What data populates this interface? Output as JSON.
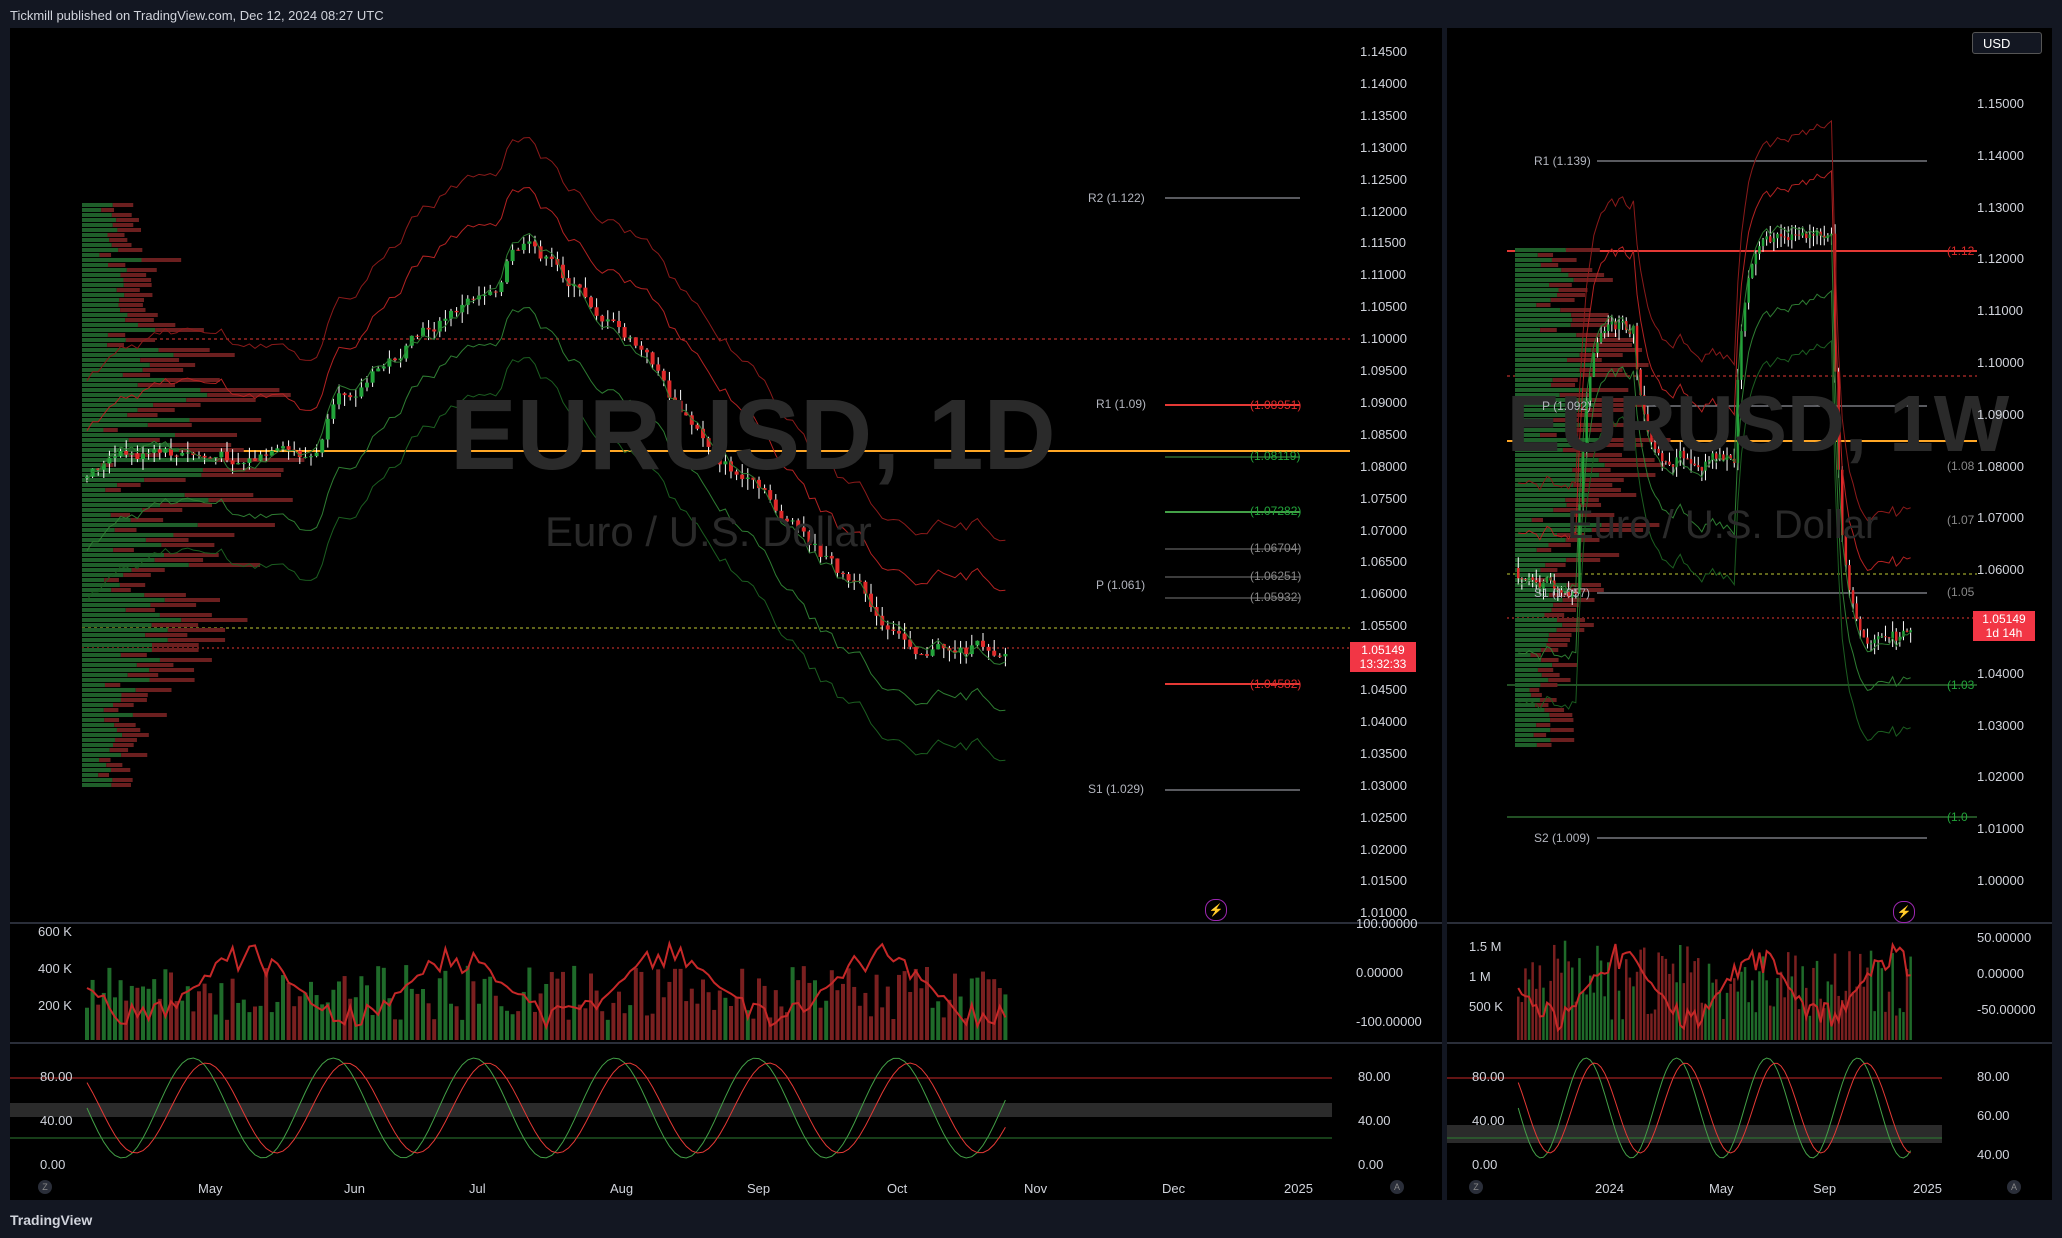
{
  "header": {
    "published": "Tickmill published on TradingView.com, Dec 12, 2024 08:27 UTC"
  },
  "footer": {
    "logo": "TradingView"
  },
  "colors": {
    "up": "#22a33a",
    "down": "#e02a2a",
    "background": "#000000",
    "pivot_line": "#ffa726",
    "price_tag": "#f23645"
  },
  "left_chart": {
    "symbol": "EURUSD, 1D",
    "description": "Euro / U.S. Dollar",
    "price_axis": [
      "1.14500",
      "1.14000",
      "1.13500",
      "1.13000",
      "1.12500",
      "1.12000",
      "1.11500",
      "1.11000",
      "1.10500",
      "1.10000",
      "1.09500",
      "1.09000",
      "1.08500",
      "1.08000",
      "1.07500",
      "1.07000",
      "1.06500",
      "1.06000",
      "1.05500",
      "1.05000",
      "1.04500",
      "1.04000",
      "1.03500",
      "1.03000",
      "1.02500",
      "1.02000",
      "1.01500",
      "1.01000"
    ],
    "time_axis": [
      "May",
      "Jun",
      "Jul",
      "Aug",
      "Sep",
      "Oct",
      "Nov",
      "Dec",
      "2025"
    ],
    "current_price": "1.05149",
    "countdown": "13:32:33",
    "pivots": {
      "r2": "R2 (1.122)",
      "r1": "R1 (1.09)",
      "p": "P (1.061)",
      "s1": "S1 (1.029)"
    },
    "fib_levels": [
      "(1.08951)",
      "(1.08119)",
      "(1.07282)",
      "(1.06704)",
      "(1.06251)",
      "(1.05932)",
      "(1.04582)"
    ],
    "volume_axis": [
      "600 K",
      "400 K",
      "200 K"
    ],
    "cci_axis": [
      "100.00000",
      "0.00000",
      "-100.00000"
    ],
    "stoch_axis_left": [
      "80.00",
      "40.00",
      "0.00"
    ],
    "stoch_axis_right": [
      "80.00",
      "40.00",
      "0.00"
    ]
  },
  "right_chart": {
    "symbol": "EURUSD, 1W",
    "description": "Euro / U.S. Dollar",
    "currency_button": "USD",
    "price_axis": [
      "1.15000",
      "1.14000",
      "1.13000",
      "1.12000",
      "1.11000",
      "1.10000",
      "1.09000",
      "1.08000",
      "1.07000",
      "1.06000",
      "1.05000",
      "1.04000",
      "1.03000",
      "1.02000",
      "1.01000",
      "1.00000"
    ],
    "time_axis": [
      "2024",
      "May",
      "Sep",
      "2025"
    ],
    "current_price": "1.05149",
    "countdown": "1d 14h",
    "pivots": {
      "r1": "R1 (1.139)",
      "p": "P (1.092)",
      "s1": "S1 (1.057)",
      "s2": "S2 (1.009)"
    },
    "fib_levels": [
      "(1.12",
      "(1.08",
      "(1.07",
      "(1.05",
      "(1.03",
      "(1.0"
    ],
    "volume_axis": [
      "1.5 M",
      "1 M",
      "500 K"
    ],
    "cci_axis": [
      "50.00000",
      "0.00000",
      "-50.00000"
    ],
    "stoch_axis_left": [
      "80.00",
      "40.00",
      "0.00"
    ],
    "stoch_axis_right": [
      "80.00",
      "60.00",
      "40.00"
    ]
  }
}
